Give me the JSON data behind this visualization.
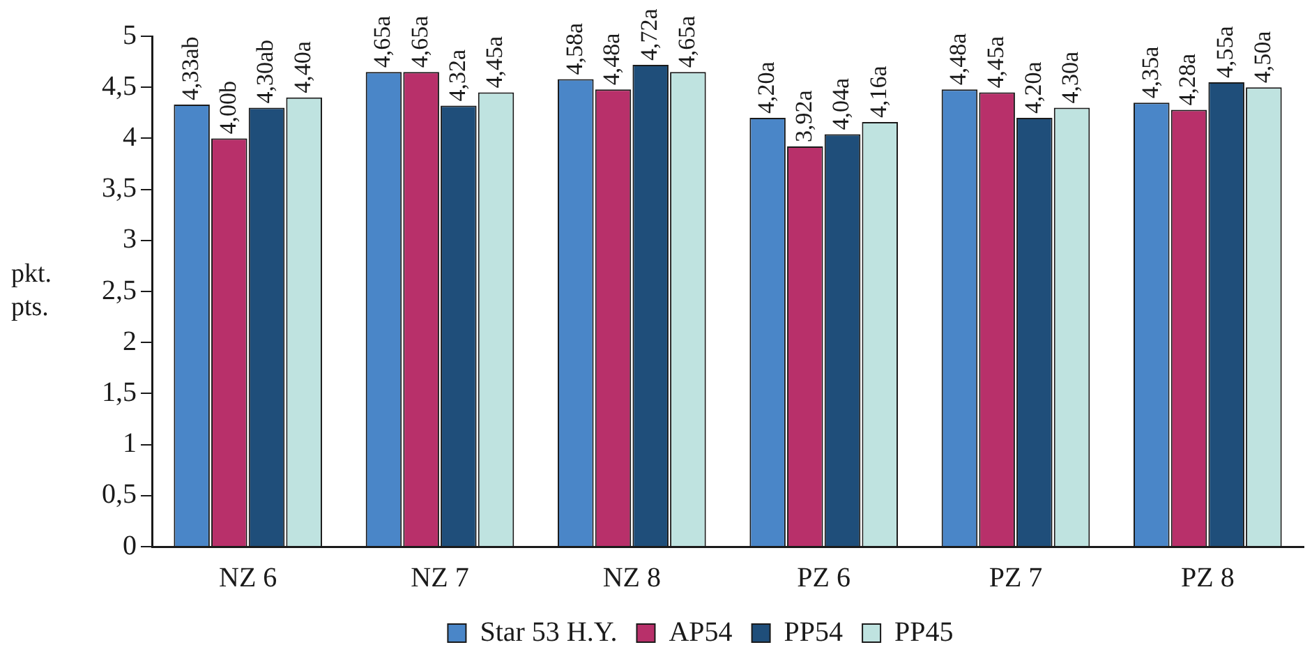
{
  "chart_data": {
    "type": "bar",
    "ylabel": "pkt.\npts.",
    "categories": [
      "NZ 6",
      "NZ 7",
      "NZ 8",
      "PZ 6",
      "PZ 7",
      "PZ 8"
    ],
    "series": [
      {
        "name": "Star 53 H.Y.",
        "color": "#4a86c8",
        "values": [
          4.33,
          4.65,
          4.58,
          4.2,
          4.48,
          4.35
        ],
        "value_labels": [
          "4,33ab",
          "4,65a",
          "4,58a",
          "4,20a",
          "4,48a",
          "4,35a"
        ]
      },
      {
        "name": "AP54",
        "color": "#b8306a",
        "values": [
          4.0,
          4.65,
          4.48,
          3.92,
          4.45,
          4.28
        ],
        "value_labels": [
          "4,00b",
          "4,65a",
          "4,48a",
          "3,92a",
          "4,45a",
          "4,28a"
        ]
      },
      {
        "name": "PP54",
        "color": "#1f4e7a",
        "values": [
          4.3,
          4.32,
          4.72,
          4.04,
          4.2,
          4.55
        ],
        "value_labels": [
          "4,30ab",
          "4,32a",
          "4,72a",
          "4,04a",
          "4,20a",
          "4,55a"
        ]
      },
      {
        "name": "PP45",
        "color": "#bfe3e0",
        "values": [
          4.4,
          4.45,
          4.65,
          4.16,
          4.3,
          4.5
        ],
        "value_labels": [
          "4,40a",
          "4,45a",
          "4,65a",
          "4,16a",
          "4,30a",
          "4,50a"
        ]
      }
    ],
    "ylim": [
      0,
      5
    ],
    "yticks": [
      0,
      {
        "value": 0.5,
        "label": "0,5"
      },
      1,
      {
        "value": 1.5,
        "label": "1,5"
      },
      2,
      {
        "value": 2.5,
        "label": "2,5"
      },
      3,
      {
        "value": 3.5,
        "label": "3,5"
      },
      4,
      {
        "value": 4.5,
        "label": "4,5"
      },
      5
    ],
    "grid": false,
    "legend": "bottom"
  }
}
